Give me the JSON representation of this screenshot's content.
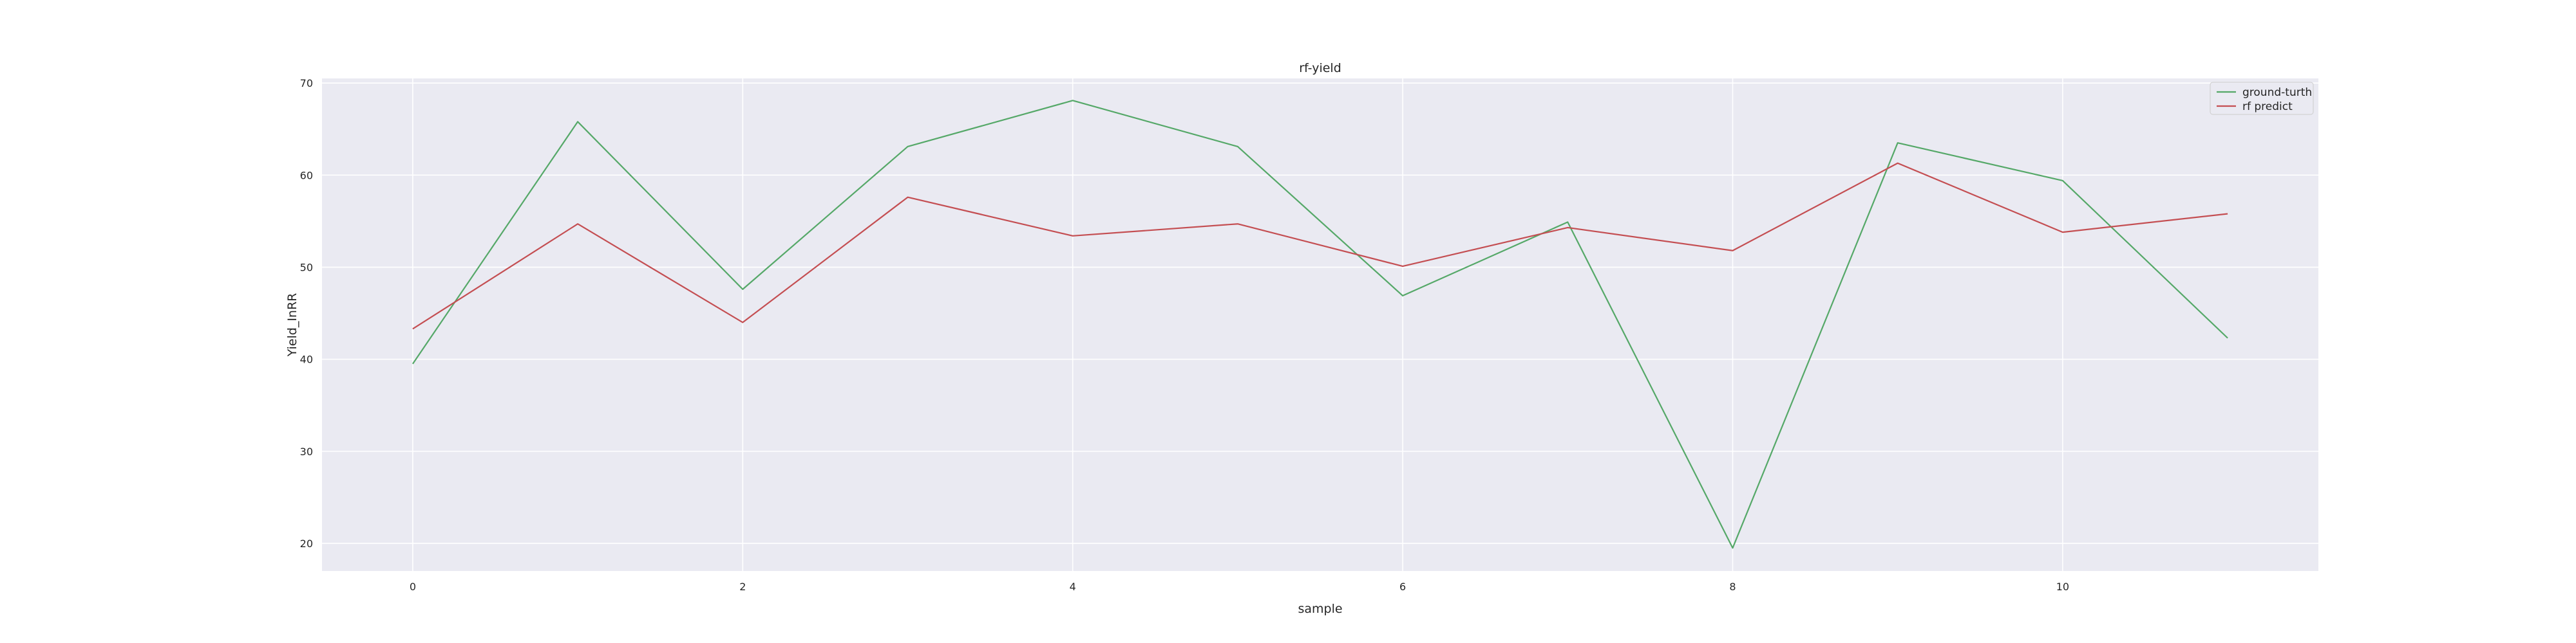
{
  "chart_data": {
    "type": "line",
    "title": "rf-yield",
    "xlabel": "sample",
    "ylabel": "Yield_InRR",
    "x": [
      0,
      1,
      2,
      3,
      4,
      5,
      6,
      7,
      8,
      9,
      10,
      11
    ],
    "xlim": [
      -0.55,
      11.55
    ],
    "ylim": [
      17,
      70.5
    ],
    "xticks": [
      0,
      2,
      4,
      6,
      8,
      10
    ],
    "yticks": [
      20,
      30,
      40,
      50,
      60,
      70
    ],
    "grid": true,
    "legend_position": "top-right",
    "series": [
      {
        "name": "ground-turth",
        "color": "#55a868",
        "values": [
          39.5,
          65.8,
          47.6,
          63.1,
          68.1,
          63.1,
          46.9,
          54.9,
          19.5,
          63.5,
          59.4,
          42.3
        ]
      },
      {
        "name": "rf predict",
        "color": "#c44e52",
        "values": [
          43.3,
          54.7,
          44.0,
          57.6,
          53.4,
          54.7,
          50.1,
          54.3,
          51.8,
          61.3,
          53.8,
          55.8
        ]
      }
    ],
    "colors": {
      "plot_background": "#eaeaf2",
      "grid": "#ffffff",
      "text": "#262626"
    }
  }
}
